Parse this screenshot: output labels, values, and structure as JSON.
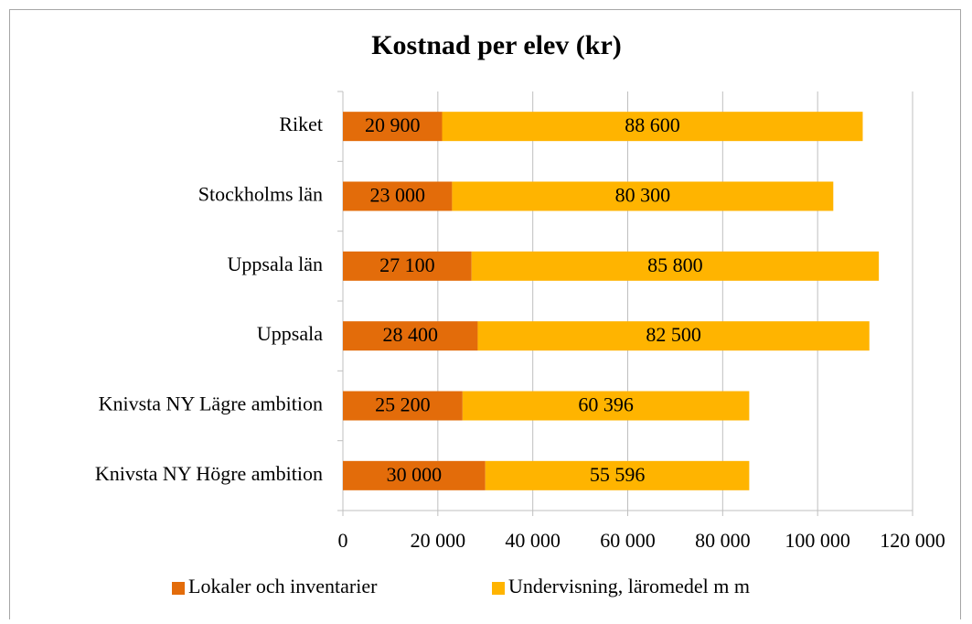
{
  "chart_data": {
    "type": "stacked-barh",
    "title": "Kostnad per elev (kr)",
    "categories": [
      "Riket",
      "Stockholms län",
      "Uppsala län",
      "Uppsala",
      "Knivsta NY Lägre ambition",
      "Knivsta NY Högre ambition"
    ],
    "series": [
      {
        "name": "Lokaler och inventarier",
        "color": "#e36c0a",
        "values": [
          20900,
          23000,
          27100,
          28400,
          25200,
          30000
        ],
        "value_labels": [
          "20 900",
          "23 000",
          "27 100",
          "28 400",
          "25 200",
          "30 000"
        ]
      },
      {
        "name": "Undervisning, läromedel m m",
        "color": "#ffb400",
        "values": [
          88600,
          80300,
          85800,
          82500,
          60396,
          55596
        ],
        "value_labels": [
          "88 600",
          "80 300",
          "85 800",
          "82 500",
          "60 396",
          "55 596"
        ]
      }
    ],
    "xlim": [
      0,
      120000
    ],
    "xticks": [
      0,
      {
        "value": 20000,
        "label": "20 000"
      },
      {
        "value": 40000,
        "label": "40 000"
      },
      {
        "value": 60000,
        "label": "60 000"
      },
      {
        "value": 80000,
        "label": "80 000"
      },
      {
        "value": 100000,
        "label": "100 000"
      },
      {
        "value": 120000,
        "label": "120 000"
      }
    ],
    "grid": true,
    "legend": "bottom"
  }
}
